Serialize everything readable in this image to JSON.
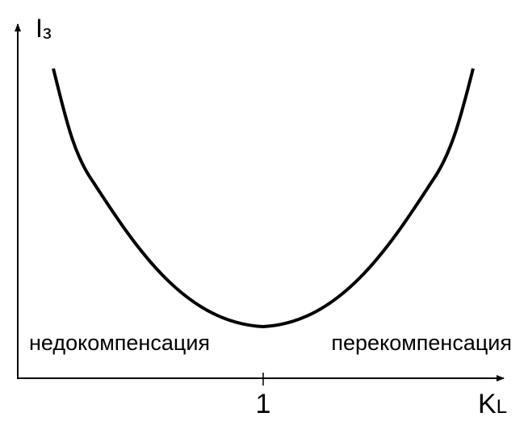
{
  "y_axis": {
    "label": "I",
    "subscript": "з"
  },
  "x_axis": {
    "label": "K",
    "subscript": "L",
    "tick": "1"
  },
  "regions": [
    "недокомпенсация",
    "перекомпенсация"
  ]
}
